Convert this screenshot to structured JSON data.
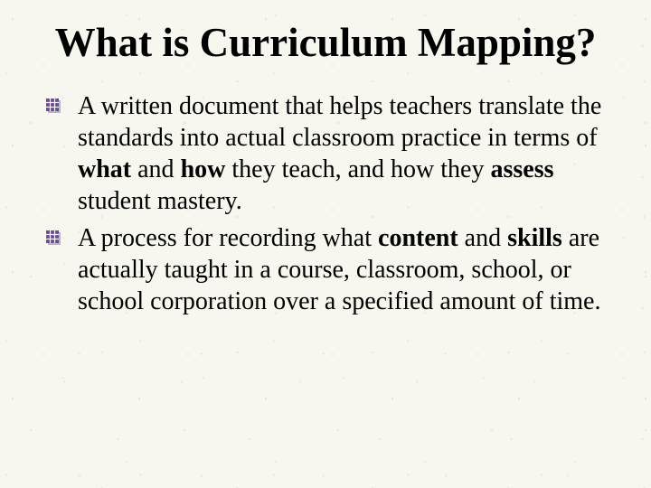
{
  "slide": {
    "title": "What is Curriculum Mapping?",
    "bullets": [
      {
        "segments": [
          {
            "text": "A written document that helps teachers translate the standards into actual classroom practice in terms of ",
            "bold": false
          },
          {
            "text": "what",
            "bold": true
          },
          {
            "text": " and ",
            "bold": false
          },
          {
            "text": "how",
            "bold": true
          },
          {
            "text": " they teach, and how they ",
            "bold": false
          },
          {
            "text": "assess",
            "bold": true
          },
          {
            "text": " student mastery.",
            "bold": false
          }
        ]
      },
      {
        "segments": [
          {
            "text": "A process for recording what ",
            "bold": false
          },
          {
            "text": "content",
            "bold": true
          },
          {
            "text": " and ",
            "bold": false
          },
          {
            "text": "skills",
            "bold": true
          },
          {
            "text": " are actually taught in a course, classroom, school, or school corporation over a specified amount of time.",
            "bold": false
          }
        ]
      }
    ]
  },
  "style": {
    "background_color": "#f7f7ef",
    "text_color": "#000000",
    "title_fontsize": 45,
    "body_fontsize": 28,
    "font_family": "Comic Sans MS",
    "bullet_icon": "hash-box",
    "bullet_icon_color_a": "#6a4a9a",
    "bullet_icon_color_b": "#b8b8b8"
  }
}
